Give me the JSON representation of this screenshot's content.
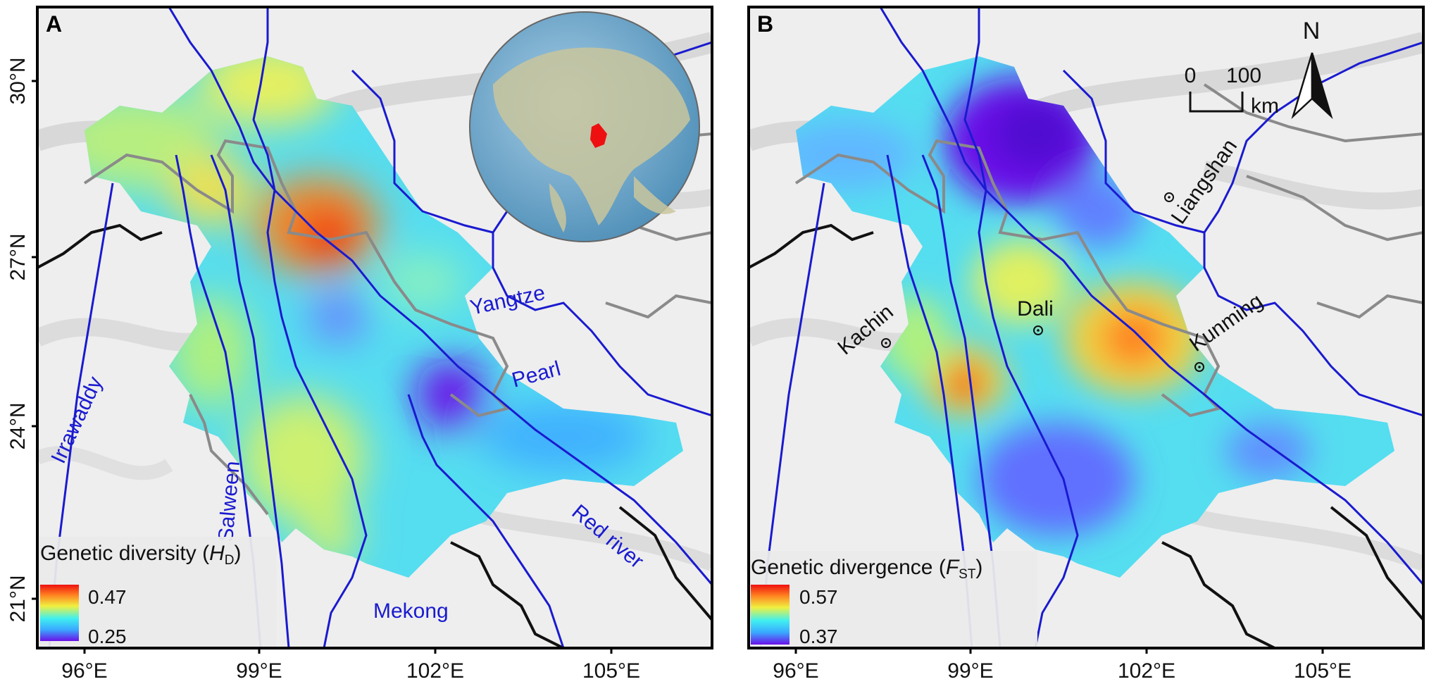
{
  "panel_a": {
    "label": "A",
    "x_ticks": [
      "96°E",
      "99°E",
      "102°E",
      "105°E"
    ],
    "y_ticks": [
      "30°N",
      "27°N",
      "24°N",
      "21°N"
    ],
    "rivers": {
      "yangtze": "Yangtze",
      "pearl": "Pearl",
      "irrawaddy": "Irrawaddy",
      "salween": "Salween",
      "red_river": "Red river",
      "mekong": "Mekong"
    },
    "legend": {
      "title_prefix": "Genetic diversity (",
      "symbol": "H",
      "subscript": "D",
      "title_suffix": ")",
      "max": "0.47",
      "min": "0.25"
    }
  },
  "panel_b": {
    "label": "B",
    "x_ticks": [
      "96°E",
      "99°E",
      "102°E",
      "105°E"
    ],
    "places": {
      "liangshan": "Liangshan",
      "dali": "Dali",
      "kachin": "Kachin",
      "kunming": "Kunming"
    },
    "north": "N",
    "scale": {
      "zero": "0",
      "hundred": "100",
      "unit": "km"
    },
    "legend": {
      "title_prefix": "Genetic divergence (",
      "symbol": "F",
      "subscript": "ST",
      "title_suffix": ")",
      "max": "0.57",
      "min": "0.37"
    }
  },
  "colors": {
    "river": "#1a1ad0",
    "border_gray": "#8a8a8a",
    "border_black": "#111111",
    "ramp": [
      "#6a10e8",
      "#3aa8ff",
      "#3ff0f0",
      "#f0f040",
      "#ff8020",
      "#ee1010"
    ]
  }
}
